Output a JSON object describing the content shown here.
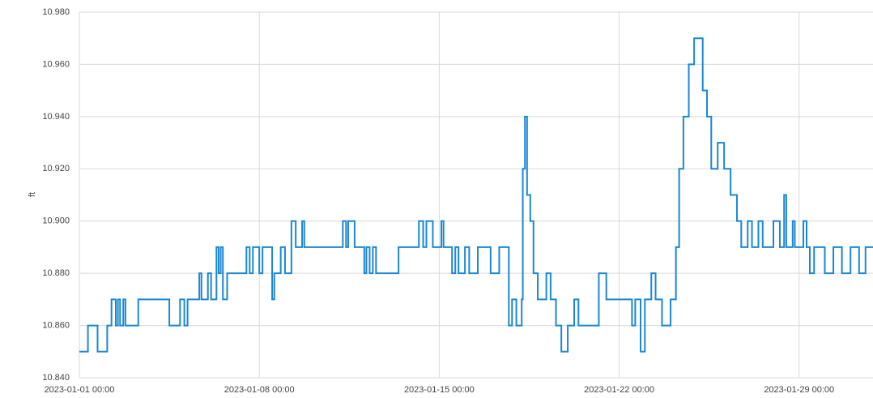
{
  "chart_data": {
    "type": "line",
    "y_label": "ft",
    "step": true,
    "grid": true,
    "xlim": [
      "2023-01-01 00:00",
      "2023-01-31 21:00"
    ],
    "xticks": [
      "2023-01-01 00:00",
      "2023-01-08 00:00",
      "2023-01-15 00:00",
      "2023-01-22 00:00",
      "2023-01-29 00:00"
    ],
    "ylim": [
      10.84,
      10.98
    ],
    "yticks": [
      {
        "value": 10.84,
        "label": "10.840"
      },
      {
        "value": 10.86,
        "label": "10.860"
      },
      {
        "value": 10.88,
        "label": "10.880"
      },
      {
        "value": 10.9,
        "label": "10.900"
      },
      {
        "value": 10.92,
        "label": "10.920"
      },
      {
        "value": 10.94,
        "label": "10.940"
      },
      {
        "value": 10.96,
        "label": "10.960"
      },
      {
        "value": 10.98,
        "label": "10.980"
      }
    ],
    "x": [
      "2023-01-01 00:00",
      "2023-01-01 08:00",
      "2023-01-01 17:00",
      "2023-01-02 02:00",
      "2023-01-02 06:00",
      "2023-01-02 10:00",
      "2023-01-02 12:00",
      "2023-01-02 14:00",
      "2023-01-02 17:00",
      "2023-01-02 19:00",
      "2023-01-03 07:00",
      "2023-01-04 12:00",
      "2023-01-04 22:00",
      "2023-01-05 02:00",
      "2023-01-05 05:00",
      "2023-01-05 16:00",
      "2023-01-05 18:00",
      "2023-01-06 00:00",
      "2023-01-06 03:00",
      "2023-01-06 08:00",
      "2023-01-06 10:00",
      "2023-01-06 12:00",
      "2023-01-06 14:00",
      "2023-01-06 18:00",
      "2023-01-07 12:00",
      "2023-01-07 15:00",
      "2023-01-07 18:00",
      "2023-01-08 00:00",
      "2023-01-08 03:00",
      "2023-01-08 12:00",
      "2023-01-08 14:00",
      "2023-01-08 20:00",
      "2023-01-09 00:00",
      "2023-01-09 06:00",
      "2023-01-09 10:00",
      "2023-01-09 16:00",
      "2023-01-09 18:00",
      "2023-01-11 06:00",
      "2023-01-11 09:00",
      "2023-01-11 11:00",
      "2023-01-11 17:00",
      "2023-01-12 02:00",
      "2023-01-12 04:00",
      "2023-01-12 07:00",
      "2023-01-12 10:00",
      "2023-01-12 13:00",
      "2023-01-13 10:00",
      "2023-01-14 05:00",
      "2023-01-14 09:00",
      "2023-01-14 12:00",
      "2023-01-14 18:00",
      "2023-01-15 02:00",
      "2023-01-15 04:00",
      "2023-01-15 12:00",
      "2023-01-15 15:00",
      "2023-01-15 18:00",
      "2023-01-16 00:00",
      "2023-01-16 04:00",
      "2023-01-16 12:00",
      "2023-01-17 00:00",
      "2023-01-17 08:00",
      "2023-01-17 17:00",
      "2023-01-17 20:00",
      "2023-01-18 00:00",
      "2023-01-18 05:00",
      "2023-01-18 06:00",
      "2023-01-18 08:00",
      "2023-01-18 10:00",
      "2023-01-18 13:00",
      "2023-01-18 16:00",
      "2023-01-18 20:00",
      "2023-01-19 04:00",
      "2023-01-19 08:00",
      "2023-01-19 13:00",
      "2023-01-19 18:00",
      "2023-01-20 00:00",
      "2023-01-20 06:00",
      "2023-01-20 10:00",
      "2023-01-21 05:00",
      "2023-01-21 12:00",
      "2023-01-22 12:00",
      "2023-01-22 15:00",
      "2023-01-22 20:00",
      "2023-01-23 00:00",
      "2023-01-23 06:00",
      "2023-01-23 10:00",
      "2023-01-23 16:00",
      "2023-01-24 00:00",
      "2023-01-24 05:00",
      "2023-01-24 08:00",
      "2023-01-24 12:00",
      "2023-01-24 17:00",
      "2023-01-24 22:00",
      "2023-01-25 06:00",
      "2023-01-25 10:00",
      "2023-01-25 14:00",
      "2023-01-25 20:00",
      "2023-01-26 02:00",
      "2023-01-26 08:00",
      "2023-01-26 14:00",
      "2023-01-26 18:00",
      "2023-01-27 00:00",
      "2023-01-27 04:00",
      "2023-01-27 10:00",
      "2023-01-27 14:00",
      "2023-01-28 00:00",
      "2023-01-28 06:00",
      "2023-01-28 10:00",
      "2023-01-28 12:00",
      "2023-01-28 18:00",
      "2023-01-28 20:00",
      "2023-01-29 04:00",
      "2023-01-29 07:00",
      "2023-01-29 10:00",
      "2023-01-29 14:00",
      "2023-01-30 00:00",
      "2023-01-30 08:00",
      "2023-01-30 16:00",
      "2023-01-31 00:00",
      "2023-01-31 08:00",
      "2023-01-31 14:00",
      "2023-01-31 21:00"
    ],
    "series": [
      {
        "color": "#1b87d4",
        "values": [
          10.85,
          10.86,
          10.85,
          10.86,
          10.87,
          10.86,
          10.87,
          10.86,
          10.87,
          10.86,
          10.87,
          10.86,
          10.87,
          10.86,
          10.87,
          10.88,
          10.87,
          10.88,
          10.87,
          10.89,
          10.88,
          10.89,
          10.87,
          10.88,
          10.89,
          10.88,
          10.89,
          10.88,
          10.89,
          10.87,
          10.88,
          10.89,
          10.88,
          10.9,
          10.89,
          10.9,
          10.89,
          10.9,
          10.89,
          10.9,
          10.89,
          10.88,
          10.89,
          10.88,
          10.89,
          10.88,
          10.89,
          10.9,
          10.89,
          10.9,
          10.89,
          10.9,
          10.89,
          10.88,
          10.89,
          10.88,
          10.89,
          10.88,
          10.89,
          10.88,
          10.89,
          10.86,
          10.87,
          10.86,
          10.87,
          10.92,
          10.94,
          10.91,
          10.9,
          10.88,
          10.87,
          10.88,
          10.87,
          10.86,
          10.85,
          10.86,
          10.87,
          10.86,
          10.88,
          10.87,
          10.86,
          10.87,
          10.85,
          10.87,
          10.88,
          10.87,
          10.86,
          10.87,
          10.89,
          10.92,
          10.94,
          10.96,
          10.97,
          10.95,
          10.94,
          10.92,
          10.93,
          10.92,
          10.91,
          10.9,
          10.89,
          10.9,
          10.89,
          10.9,
          10.89,
          10.9,
          10.89,
          10.91,
          10.89,
          10.9,
          10.89,
          10.9,
          10.89,
          10.88,
          10.89,
          10.88,
          10.89,
          10.88,
          10.89,
          10.88,
          10.89,
          10.89
        ]
      }
    ]
  }
}
